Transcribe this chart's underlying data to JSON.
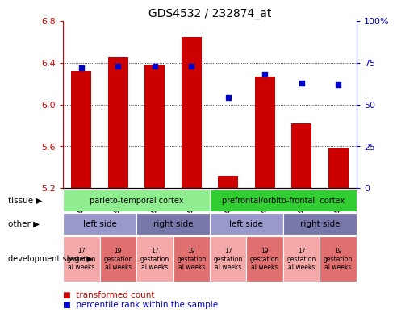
{
  "title": "GDS4532 / 232874_at",
  "samples": [
    "GSM543633",
    "GSM543632",
    "GSM543631",
    "GSM543630",
    "GSM543637",
    "GSM543636",
    "GSM543635",
    "GSM543634"
  ],
  "transformed_count": [
    6.32,
    6.45,
    6.38,
    6.65,
    5.32,
    6.27,
    5.82,
    5.58
  ],
  "percentile_rank": [
    72,
    73,
    73,
    73,
    54,
    68,
    63,
    62
  ],
  "ylim_left": [
    5.2,
    6.8
  ],
  "ylim_right": [
    0,
    100
  ],
  "yticks_left": [
    5.2,
    5.6,
    6.0,
    6.4,
    6.8
  ],
  "yticks_right": [
    0,
    25,
    50,
    75,
    100
  ],
  "bar_color": "#cc0000",
  "dot_color": "#0000cc",
  "bar_bottom": 5.2,
  "tissue_groups": [
    {
      "label": "parieto-temporal cortex",
      "start": 0,
      "end": 4,
      "color": "#90ee90"
    },
    {
      "label": "prefrontal/orbito-frontal  cortex",
      "start": 4,
      "end": 8,
      "color": "#32cd32"
    }
  ],
  "other_groups": [
    {
      "label": "left side",
      "start": 0,
      "end": 2,
      "color": "#9999cc"
    },
    {
      "label": "right side",
      "start": 2,
      "end": 4,
      "color": "#7777aa"
    },
    {
      "label": "left side",
      "start": 4,
      "end": 6,
      "color": "#9999cc"
    },
    {
      "label": "right side",
      "start": 6,
      "end": 8,
      "color": "#7777aa"
    }
  ],
  "dev_stage_labels": [
    "17\ngestation\nal weeks",
    "19\ngestation\nal weeks",
    "17\ngestation\nal weeks",
    "19\ngestation\nal weeks",
    "17\ngestation\nal weeks",
    "19\ngestation\nal weeks",
    "17\ngestation\nal weeks",
    "19\ngestation\nal weeks"
  ],
  "dev_stage_colors": [
    "#f4a9a8",
    "#e07070",
    "#f4a9a8",
    "#e07070",
    "#f4a9a8",
    "#e07070",
    "#f4a9a8",
    "#e07070"
  ],
  "row_labels": [
    "tissue",
    "other",
    "development stage"
  ],
  "legend_items": [
    {
      "label": "transformed count",
      "color": "#cc0000"
    },
    {
      "label": "percentile rank within the sample",
      "color": "#0000cc"
    }
  ],
  "tick_color_left": "#cc0000",
  "tick_color_right": "#0000cc",
  "grid_color": "#000000"
}
